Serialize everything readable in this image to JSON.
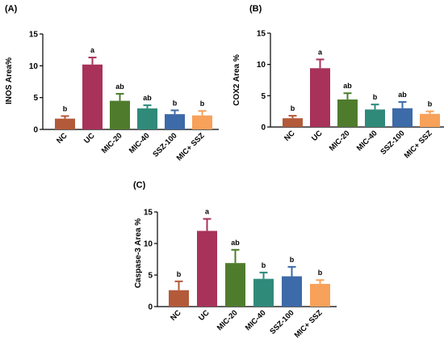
{
  "chart_data": [
    {
      "type": "bar",
      "panel_label": "(A)",
      "ylabel": "INOS Area%",
      "categories": [
        "NC",
        "UC",
        "MIC-20",
        "MIC-40",
        "SSZ-100",
        "MIC+ SSZ"
      ],
      "values": [
        1.7,
        10.2,
        4.5,
        3.3,
        2.4,
        2.2
      ],
      "errors": [
        0.4,
        1.1,
        1.1,
        0.5,
        0.6,
        0.7
      ],
      "significance_labels": [
        "b",
        "a",
        "ab",
        "ab",
        "b",
        "b"
      ],
      "ylim": [
        0,
        15
      ],
      "yticks": [
        0,
        5,
        10,
        15
      ]
    },
    {
      "type": "bar",
      "panel_label": "(B)",
      "ylabel": "COX2 Area %",
      "categories": [
        "NC",
        "UC",
        "MIC-20",
        "MIC-40",
        "SSZ-100",
        "MIC+ SSZ"
      ],
      "values": [
        1.4,
        9.4,
        4.4,
        2.8,
        3.0,
        2.1
      ],
      "errors": [
        0.4,
        1.4,
        1.0,
        0.8,
        1.0,
        0.4
      ],
      "significance_labels": [
        "b",
        "a",
        "ab",
        "b",
        "ab",
        "b"
      ],
      "ylim": [
        0,
        15
      ],
      "yticks": [
        0,
        5,
        10,
        15
      ]
    },
    {
      "type": "bar",
      "panel_label": "(C)",
      "ylabel": "Caspase-3 Area %",
      "categories": [
        "NC",
        "UC",
        "MIC-20",
        "MIC-40",
        "SSZ-100",
        "MIC+ SSZ"
      ],
      "values": [
        2.6,
        12.0,
        6.9,
        4.4,
        4.8,
        3.6
      ],
      "errors": [
        1.4,
        1.9,
        2.1,
        1.0,
        1.5,
        0.6
      ],
      "significance_labels": [
        "b",
        "a",
        "ab",
        "b",
        "b",
        "b"
      ],
      "ylim": [
        0,
        15
      ],
      "yticks": [
        0,
        5,
        10,
        15
      ]
    }
  ],
  "colors": {
    "bars": [
      "#b35a3a",
      "#a8325a",
      "#4e7c2c",
      "#2f8a7a",
      "#3d6aa8",
      "#f7a15a"
    ],
    "axis": "#000000"
  }
}
